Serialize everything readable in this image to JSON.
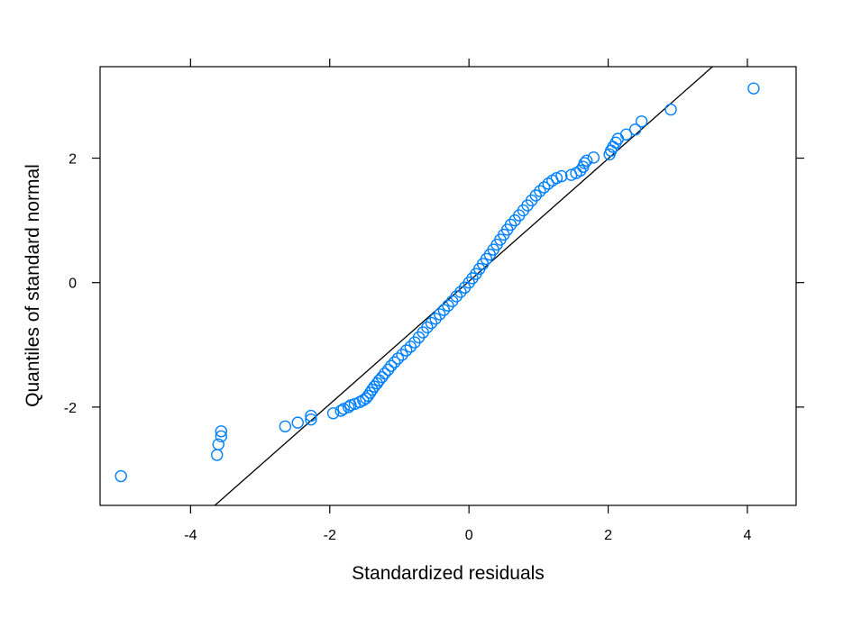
{
  "chart_data": {
    "type": "scatter",
    "title": "",
    "xlabel": "Standardized residuals",
    "ylabel": "Quantiles of standard normal",
    "xlim": [
      -5.3,
      4.7
    ],
    "ylim": [
      -3.58,
      3.47
    ],
    "x_ticks": [
      -4,
      -2,
      0,
      2,
      4
    ],
    "y_ticks": [
      -2,
      0,
      2
    ],
    "x_tick_labels": [
      "-4",
      "-2",
      "0",
      "2",
      "4"
    ],
    "y_tick_labels": [
      "-2",
      "0",
      "2"
    ],
    "grid": false,
    "point_color": "#0080FF",
    "line_color": "#000000",
    "reference_line": {
      "intercept": 0.02,
      "slope": 0.986
    },
    "series": [
      {
        "points": [
          [
            -5.0,
            -3.11
          ],
          [
            -3.62,
            -2.77
          ],
          [
            -3.6,
            -2.6
          ],
          [
            -3.56,
            -2.47
          ],
          [
            -3.56,
            -2.39
          ],
          [
            -2.64,
            -2.31
          ],
          [
            -2.46,
            -2.25
          ],
          [
            -2.27,
            -2.2
          ],
          [
            -2.27,
            -2.14
          ],
          [
            -1.95,
            -2.1
          ],
          [
            -1.84,
            -2.06
          ],
          [
            -1.8,
            -2.03
          ],
          [
            -1.73,
            -2.0
          ],
          [
            -1.7,
            -1.97
          ],
          [
            -1.64,
            -1.95
          ],
          [
            -1.57,
            -1.92
          ],
          [
            -1.52,
            -1.89
          ],
          [
            -1.48,
            -1.86
          ],
          [
            -1.45,
            -1.82
          ],
          [
            -1.42,
            -1.77
          ],
          [
            -1.39,
            -1.72
          ],
          [
            -1.36,
            -1.67
          ],
          [
            -1.32,
            -1.62
          ],
          [
            -1.29,
            -1.57
          ],
          [
            -1.25,
            -1.52
          ],
          [
            -1.21,
            -1.46
          ],
          [
            -1.16,
            -1.4
          ],
          [
            -1.12,
            -1.34
          ],
          [
            -1.07,
            -1.28
          ],
          [
            -1.02,
            -1.22
          ],
          [
            -0.96,
            -1.16
          ],
          [
            -0.9,
            -1.09
          ],
          [
            -0.84,
            -1.03
          ],
          [
            -0.78,
            -0.96
          ],
          [
            -0.72,
            -0.88
          ],
          [
            -0.66,
            -0.8
          ],
          [
            -0.6,
            -0.72
          ],
          [
            -0.54,
            -0.65
          ],
          [
            -0.48,
            -0.58
          ],
          [
            -0.42,
            -0.51
          ],
          [
            -0.36,
            -0.44
          ],
          [
            -0.3,
            -0.37
          ],
          [
            -0.24,
            -0.3
          ],
          [
            -0.18,
            -0.22
          ],
          [
            -0.12,
            -0.15
          ],
          [
            -0.06,
            -0.08
          ],
          [
            0.0,
            0.0
          ],
          [
            0.05,
            0.07
          ],
          [
            0.1,
            0.14
          ],
          [
            0.15,
            0.22
          ],
          [
            0.2,
            0.3
          ],
          [
            0.25,
            0.38
          ],
          [
            0.3,
            0.45
          ],
          [
            0.35,
            0.53
          ],
          [
            0.4,
            0.61
          ],
          [
            0.45,
            0.69
          ],
          [
            0.5,
            0.77
          ],
          [
            0.55,
            0.85
          ],
          [
            0.6,
            0.93
          ],
          [
            0.66,
            1.0
          ],
          [
            0.72,
            1.08
          ],
          [
            0.78,
            1.16
          ],
          [
            0.84,
            1.24
          ],
          [
            0.9,
            1.32
          ],
          [
            0.96,
            1.4
          ],
          [
            1.02,
            1.47
          ],
          [
            1.08,
            1.53
          ],
          [
            1.14,
            1.59
          ],
          [
            1.2,
            1.64
          ],
          [
            1.26,
            1.68
          ],
          [
            1.33,
            1.71
          ],
          [
            1.47,
            1.73
          ],
          [
            1.54,
            1.76
          ],
          [
            1.6,
            1.8
          ],
          [
            1.64,
            1.86
          ],
          [
            1.66,
            1.92
          ],
          [
            1.69,
            1.96
          ],
          [
            1.79,
            2.01
          ],
          [
            2.02,
            2.06
          ],
          [
            2.04,
            2.12
          ],
          [
            2.07,
            2.18
          ],
          [
            2.11,
            2.25
          ],
          [
            2.14,
            2.31
          ],
          [
            2.26,
            2.38
          ],
          [
            2.39,
            2.46
          ],
          [
            2.48,
            2.59
          ],
          [
            2.9,
            2.78
          ],
          [
            4.09,
            3.12
          ]
        ]
      }
    ]
  }
}
